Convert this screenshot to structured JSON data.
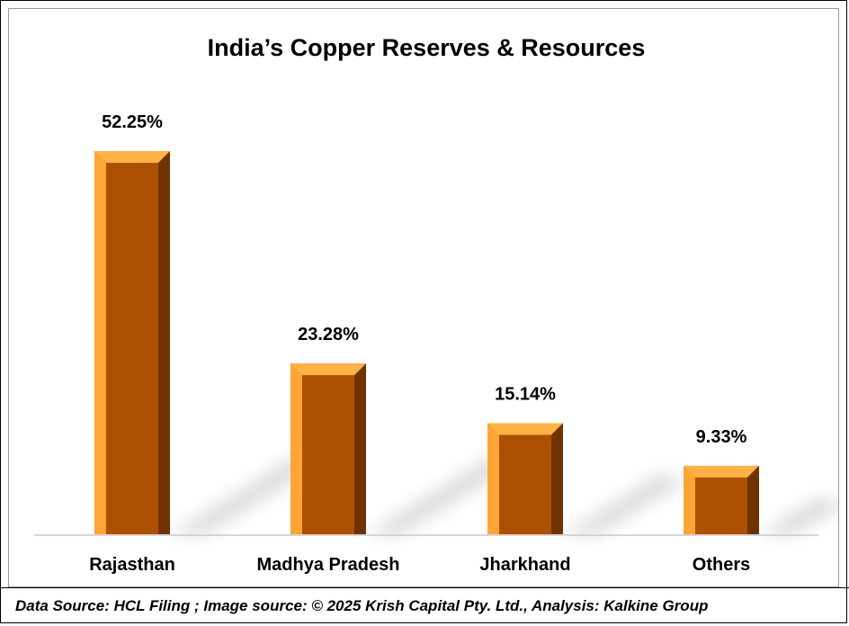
{
  "chart_data": {
    "type": "bar",
    "title": "India’s Copper Reserves & Resources",
    "xlabel": "",
    "ylabel": "",
    "categories": [
      "Rajasthan",
      "Madhya Pradesh",
      "Jharkhand",
      "Others"
    ],
    "values": [
      52.25,
      23.28,
      15.14,
      9.33
    ],
    "data_labels": [
      "52.25%",
      "23.28%",
      "15.14%",
      "9.33%"
    ],
    "ylim": [
      0,
      60
    ],
    "grid": false,
    "legend": "none",
    "style": "3d-bevel-with-shadow",
    "colors": {
      "bar_face": "#AD5000",
      "bar_bevel_light": "#FFA436",
      "bar_bevel_top": "#FFB347",
      "bar_bevel_dark": "#6E3300",
      "shadow": "#d9d9d9"
    }
  },
  "footer": {
    "source_text": "Data Source: HCL Filing ; Image source: © 2025 Krish Capital Pty. Ltd., Analysis: Kalkine Group"
  }
}
